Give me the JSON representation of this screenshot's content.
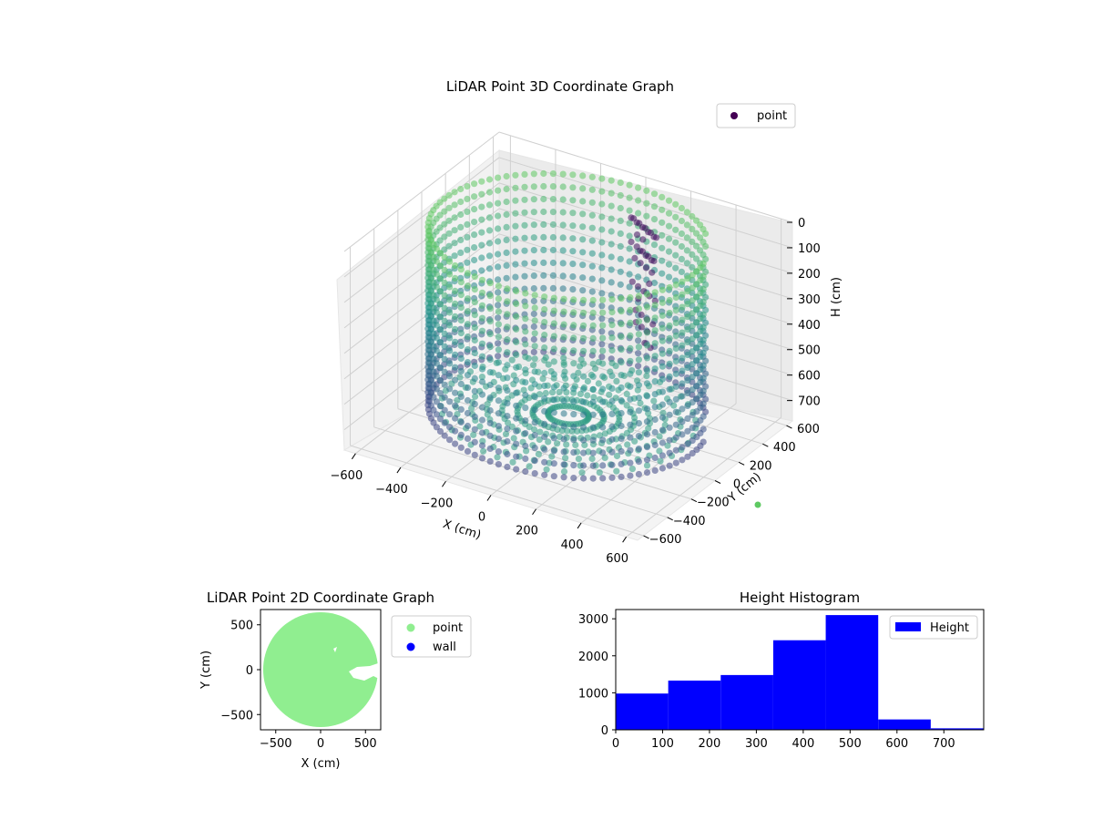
{
  "figure": {
    "background": "#ffffff"
  },
  "chart_data": [
    {
      "type": "scatter3d",
      "title": "LiDAR Point 3D Coordinate Graph",
      "xlabel": "X (cm)",
      "ylabel": "Y (cm)",
      "zlabel": "H (cm)",
      "xticks": [
        "−600",
        "−400",
        "−200",
        "0",
        "200",
        "400",
        "600"
      ],
      "yticks": [
        "−600",
        "−400",
        "−200",
        "0",
        "200",
        "400",
        "600"
      ],
      "zticks": [
        "0",
        "100",
        "200",
        "300",
        "400",
        "500",
        "600",
        "700"
      ],
      "xlim": [
        -650,
        650
      ],
      "ylim": [
        -650,
        650
      ],
      "zlim": [
        780,
        0
      ],
      "zinverted": true,
      "legend": {
        "entries": [
          "point"
        ],
        "placement": "top-right",
        "marker_color": "#440154"
      },
      "colormap": "viridis",
      "description_points": {
        "wall_radius": 550,
        "wall_height_range": [
          0,
          780
        ]
      },
      "grid": true
    },
    {
      "type": "scatter",
      "title": "LiDAR Point 2D Coordinate Graph",
      "xlabel": "X (cm)",
      "ylabel": "Y (cm)",
      "xticks": [
        "−500",
        "0",
        "500"
      ],
      "yticks": [
        "−500",
        "0",
        "500"
      ],
      "xlim": [
        -670,
        670
      ],
      "ylim": [
        -670,
        670
      ],
      "series": [
        {
          "name": "point",
          "color": "#90ee90",
          "shape": "disc",
          "radius": 630
        },
        {
          "name": "wall",
          "color": "#0000ff"
        }
      ],
      "legend": {
        "placement": "outside-right"
      }
    },
    {
      "type": "histogram",
      "title": "Height Histogram",
      "series_name": "Height",
      "color": "#0000ff",
      "xticks": [
        "0",
        "100",
        "200",
        "300",
        "400",
        "500",
        "600",
        "700"
      ],
      "yticks": [
        "0",
        "1000",
        "2000",
        "3000"
      ],
      "xlim": [
        0,
        785
      ],
      "ylim": [
        0,
        3250
      ],
      "bins": [
        {
          "start": 0,
          "end": 112,
          "count": 980
        },
        {
          "start": 112,
          "end": 224,
          "count": 1330
        },
        {
          "start": 224,
          "end": 336,
          "count": 1480
        },
        {
          "start": 336,
          "end": 448,
          "count": 2420
        },
        {
          "start": 448,
          "end": 560,
          "count": 3100
        },
        {
          "start": 560,
          "end": 672,
          "count": 280
        },
        {
          "start": 672,
          "end": 784,
          "count": 40
        }
      ],
      "legend": {
        "placement": "top-right"
      }
    }
  ]
}
